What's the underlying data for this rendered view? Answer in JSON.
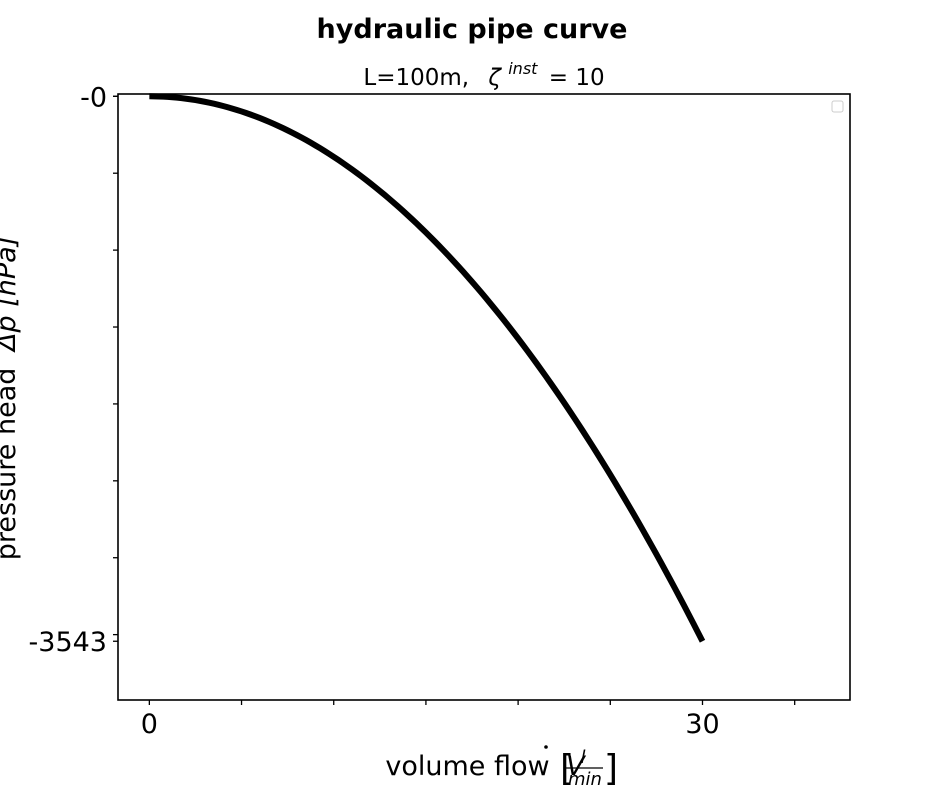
{
  "chart_data": {
    "type": "line",
    "title": "hydraulic pipe curve",
    "subtitle_prefix": "L=100m,",
    "subtitle_symbol": "ζ",
    "subtitle_superscript": "inst",
    "subtitle_suffix": "= 10",
    "xlabel_prefix": "volume flow",
    "xlabel_symbol": "V",
    "xlabel_unit_numerator": "l",
    "xlabel_unit_denominator": "min",
    "ylabel_prefix": "pressure head",
    "ylabel_symbol": "Δp",
    "ylabel_unit": "[hPa]",
    "xlim": [
      -1.7,
      38
    ],
    "ylim": [
      -3925,
      15
    ],
    "x_tick_labels": [
      {
        "value": 0,
        "label": "0"
      },
      {
        "value": 30,
        "label": "30"
      }
    ],
    "x_minor_ticks": [
      0,
      5,
      10,
      15,
      20,
      25,
      30,
      35
    ],
    "y_tick_labels": [
      {
        "value": 0,
        "label": "-0"
      },
      {
        "value": -3543,
        "label": "-3543"
      }
    ],
    "y_minor_ticks": [
      0,
      -500,
      -1000,
      -1500,
      -2000,
      -2500,
      -3000,
      -3500
    ],
    "series": [
      {
        "color": "#000000",
        "x": [
          0,
          3,
          6,
          9,
          12,
          15,
          18,
          21,
          24,
          27,
          30
        ],
        "y": [
          0,
          -35,
          -142,
          -319,
          -567,
          -886,
          -1275,
          -1736,
          -2268,
          -2870,
          -3543
        ]
      }
    ],
    "grid": false,
    "legend": "top-right, empty"
  }
}
